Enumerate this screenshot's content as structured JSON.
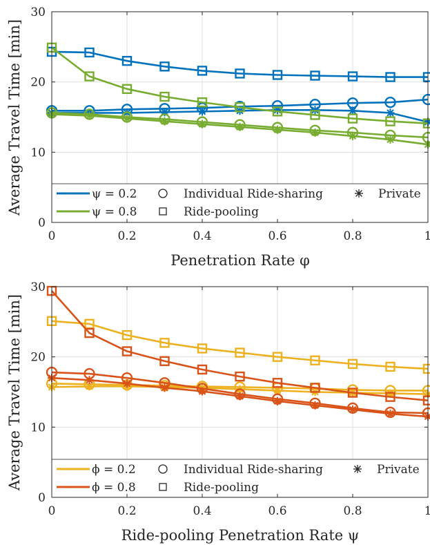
{
  "chart_data": [
    {
      "type": "line",
      "xlabel": "Penetration Rate φ",
      "ylabel": "Average Travel Time [min]",
      "xlim": [
        0,
        1
      ],
      "ylim": [
        0,
        30
      ],
      "xticks": [
        0,
        0.2,
        0.4,
        0.6,
        0.8,
        1
      ],
      "xtick_labels": [
        "0",
        "0.2",
        "0.4",
        "0.6",
        "0.8",
        "1"
      ],
      "yticks": [
        0,
        10,
        20,
        30
      ],
      "ytick_labels": [
        "0",
        "10",
        "20",
        "30"
      ],
      "grid": true,
      "legend_position": "bottom",
      "legend": {
        "colors": [
          {
            "label": "ψ = 0.2",
            "color": "#0072BD"
          },
          {
            "label": "ψ = 0.8",
            "color": "#77AC30"
          }
        ],
        "markers": [
          {
            "label": "Individual Ride-sharing",
            "marker": "circle"
          },
          {
            "label": "Ride-pooling",
            "marker": "square"
          },
          {
            "label": "Private",
            "marker": "asterisk"
          }
        ]
      },
      "x": [
        0,
        0.1,
        0.2,
        0.3,
        0.4,
        0.5,
        0.6,
        0.7,
        0.8,
        0.9,
        1
      ],
      "series": [
        {
          "group": "ψ = 0.2",
          "kind": "Ride-pooling",
          "color": "#0072BD",
          "marker": "square",
          "values": [
            24.3,
            24.2,
            23.0,
            22.2,
            21.6,
            21.2,
            21.0,
            20.9,
            20.8,
            20.7,
            20.7
          ]
        },
        {
          "group": "ψ = 0.2",
          "kind": "Individual Ride-sharing",
          "color": "#0072BD",
          "marker": "circle",
          "values": [
            15.9,
            15.9,
            16.1,
            16.2,
            16.3,
            16.5,
            16.6,
            16.8,
            17.0,
            17.1,
            17.5
          ]
        },
        {
          "group": "ψ = 0.2",
          "kind": "Private",
          "color": "#0072BD",
          "marker": "asterisk",
          "values": [
            15.6,
            15.6,
            15.6,
            15.7,
            15.8,
            15.9,
            16.0,
            16.0,
            15.9,
            15.6,
            14.3
          ]
        },
        {
          "group": "ψ = 0.8",
          "kind": "Ride-pooling",
          "color": "#77AC30",
          "marker": "square",
          "values": [
            24.9,
            20.8,
            19.0,
            17.9,
            17.1,
            16.4,
            15.8,
            15.3,
            14.8,
            14.4,
            14.1
          ]
        },
        {
          "group": "ψ = 0.8",
          "kind": "Individual Ride-sharing",
          "color": "#77AC30",
          "marker": "circle",
          "values": [
            15.6,
            15.4,
            15.0,
            14.7,
            14.3,
            13.9,
            13.5,
            13.1,
            12.8,
            12.4,
            12.1
          ]
        },
        {
          "group": "ψ = 0.8",
          "kind": "Private",
          "color": "#77AC30",
          "marker": "asterisk",
          "values": [
            15.4,
            15.2,
            14.8,
            14.4,
            14.0,
            13.6,
            13.2,
            12.8,
            12.3,
            11.8,
            11.1
          ]
        }
      ]
    },
    {
      "type": "line",
      "xlabel": "Ride-pooling Penetration Rate ψ",
      "ylabel": "Average Travel Time [min]",
      "xlim": [
        0,
        1
      ],
      "ylim": [
        0,
        30
      ],
      "xticks": [
        0,
        0.2,
        0.4,
        0.6,
        0.8,
        1
      ],
      "xtick_labels": [
        "0",
        "0.2",
        "0.4",
        "0.6",
        "0.8",
        "1"
      ],
      "yticks": [
        0,
        10,
        20,
        30
      ],
      "ytick_labels": [
        "0",
        "10",
        "20",
        "30"
      ],
      "grid": true,
      "legend_position": "bottom",
      "legend": {
        "colors": [
          {
            "label": "ϕ = 0.2",
            "color": "#EDB120"
          },
          {
            "label": "ϕ = 0.8",
            "color": "#D95319"
          }
        ],
        "markers": [
          {
            "label": "Individual Ride-sharing",
            "marker": "circle"
          },
          {
            "label": "Ride-pooling",
            "marker": "square"
          },
          {
            "label": "Private",
            "marker": "asterisk"
          }
        ]
      },
      "x": [
        0,
        0.1,
        0.2,
        0.3,
        0.4,
        0.5,
        0.6,
        0.7,
        0.8,
        0.9,
        1
      ],
      "series": [
        {
          "group": "ϕ = 0.2",
          "kind": "Ride-pooling",
          "color": "#EDB120",
          "marker": "square",
          "values": [
            25.1,
            24.7,
            23.1,
            22.0,
            21.2,
            20.6,
            20.0,
            19.5,
            19.0,
            18.6,
            18.3
          ]
        },
        {
          "group": "ϕ = 0.2",
          "kind": "Individual Ride-sharing",
          "color": "#EDB120",
          "marker": "circle",
          "values": [
            16.2,
            16.1,
            16.0,
            15.9,
            15.8,
            15.7,
            15.6,
            15.5,
            15.3,
            15.2,
            15.2
          ]
        },
        {
          "group": "ϕ = 0.2",
          "kind": "Private",
          "color": "#EDB120",
          "marker": "asterisk",
          "values": [
            15.7,
            15.8,
            15.8,
            15.7,
            15.6,
            15.4,
            15.2,
            15.0,
            14.9,
            14.8,
            14.7
          ]
        },
        {
          "group": "ϕ = 0.8",
          "kind": "Ride-pooling",
          "color": "#D95319",
          "marker": "square",
          "values": [
            29.4,
            23.4,
            20.8,
            19.4,
            18.2,
            17.2,
            16.3,
            15.6,
            14.9,
            14.3,
            13.8
          ]
        },
        {
          "group": "ϕ = 0.8",
          "kind": "Individual Ride-sharing",
          "color": "#D95319",
          "marker": "circle",
          "values": [
            17.8,
            17.6,
            17.0,
            16.3,
            15.5,
            14.7,
            14.0,
            13.4,
            12.7,
            12.1,
            12.0
          ]
        },
        {
          "group": "ϕ = 0.8",
          "kind": "Private",
          "color": "#D95319",
          "marker": "asterisk",
          "values": [
            17.0,
            16.7,
            16.2,
            15.6,
            15.1,
            14.4,
            13.7,
            13.1,
            12.5,
            11.9,
            11.5
          ]
        }
      ]
    }
  ]
}
